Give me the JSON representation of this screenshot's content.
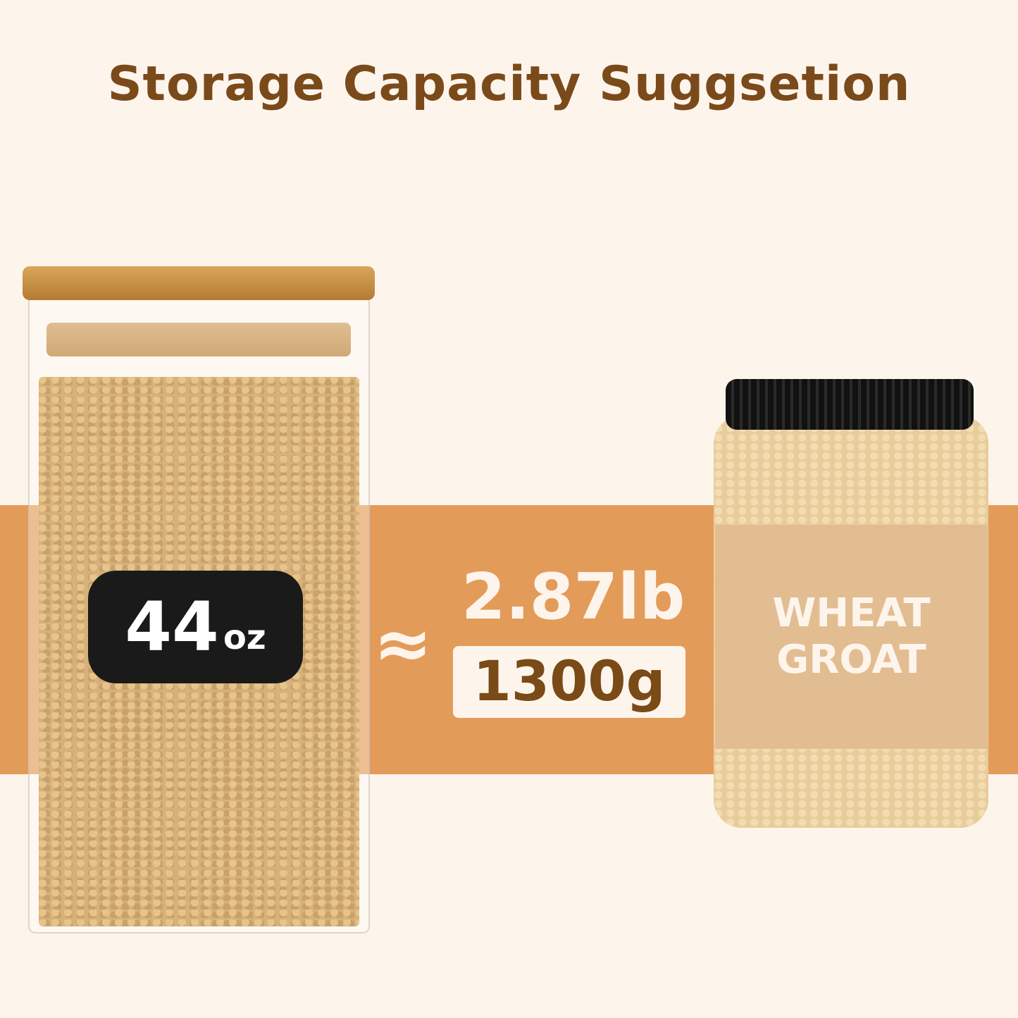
{
  "title": "Storage Capacity Suggsetion",
  "jar_label": {
    "value": "44",
    "unit": "oz"
  },
  "approx_symbol": "≈",
  "weight_lb": "2.87lb",
  "weight_g": "1300g",
  "product_label": {
    "line1": "WHEAT",
    "line2": "GROAT"
  },
  "colors": {
    "background": "#fdf5ec",
    "band": "#e39b5a",
    "title": "#7b4a1a",
    "label": "#e3bd92"
  }
}
